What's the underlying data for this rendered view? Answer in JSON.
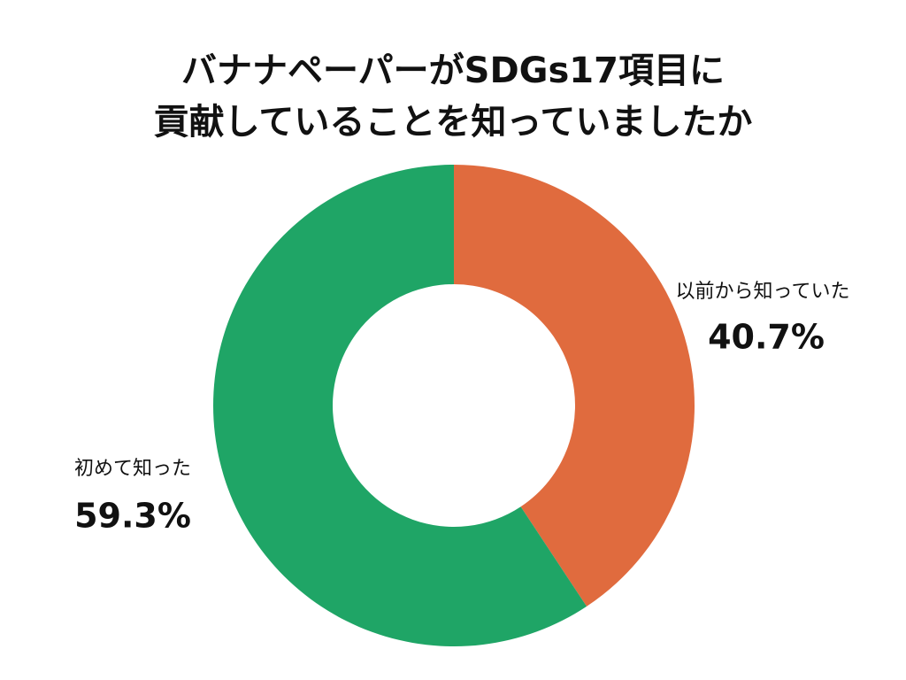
{
  "chart_data": {
    "type": "donut",
    "title": [
      "バナナペーパーがSDGs17項目に",
      "貢献していることを知っていましたか"
    ],
    "categories": [
      "以前から知っていた",
      "初めて知った"
    ],
    "values": [
      40.7,
      59.3
    ],
    "value_labels": [
      "40.7%",
      "59.3%"
    ],
    "colors": [
      "#e06b3e",
      "#1fa566"
    ]
  }
}
